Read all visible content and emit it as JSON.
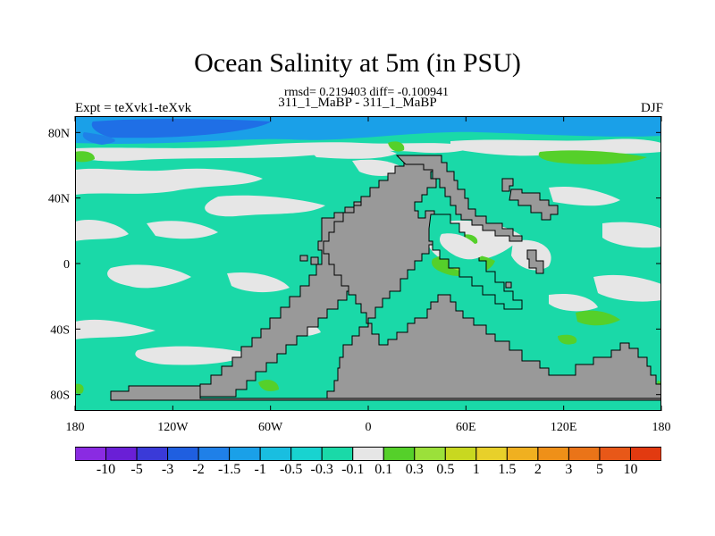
{
  "header": {
    "title": "Ocean Salinity at 5m (in PSU)",
    "stats": "rmsd= 0.219403 diff= -0.100941",
    "subtitle": "311_1_MaBP - 311_1_MaBP",
    "expt": "Expt = teXvk1-teXvk",
    "season": "DJF"
  },
  "axes": {
    "lat_ticks": [
      "80N",
      "40N",
      "0",
      "40S",
      "80S"
    ],
    "lat_values": [
      80,
      40,
      0,
      -40,
      -80
    ],
    "lon_ticks": [
      "180",
      "120W",
      "60W",
      "0",
      "60E",
      "120E",
      "180"
    ],
    "lon_values": [
      -180,
      -120,
      -60,
      0,
      60,
      120,
      180
    ],
    "lon_range": [
      -180,
      180
    ],
    "lat_range": [
      -90,
      90
    ]
  },
  "colorbar": {
    "labels": [
      "-10",
      "-5",
      "-3",
      "-2",
      "-1.5",
      "-1",
      "-0.5",
      "-0.3",
      "-0.1",
      "0.1",
      "0.3",
      "0.5",
      "1",
      "1.5",
      "2",
      "3",
      "5",
      "10"
    ],
    "colors": [
      "#8a2be2",
      "#6a1fd6",
      "#3a3ad8",
      "#1f5fe0",
      "#1f80e8",
      "#1aa0e8",
      "#19bee0",
      "#18d3d0",
      "#1ad9a8",
      "#e6e6e6",
      "#55d02a",
      "#9be03a",
      "#c8d820",
      "#e8d02a",
      "#f0b020",
      "#ef9018",
      "#ea7418",
      "#e85818",
      "#e23a10"
    ]
  },
  "colors": {
    "land": "#999999",
    "ocean_default": "#1ad9a8",
    "near_zero": "#e6e6e6"
  }
}
